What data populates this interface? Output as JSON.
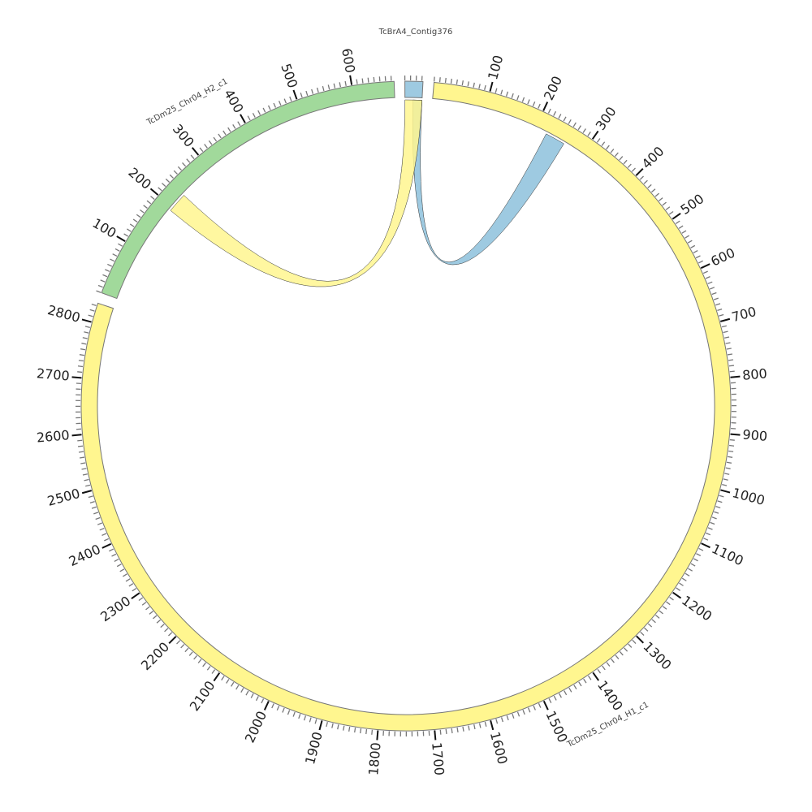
{
  "chart_data": {
    "type": "chord",
    "tick_major_interval": 100,
    "tick_minor_interval": 10,
    "segments": [
      {
        "id": "contig",
        "name": "TcBrA4_Contig376",
        "length": 32,
        "color": "#9ecae1"
      },
      {
        "id": "h1",
        "name": "TcDm25_Chr04_H1_c1",
        "length": 2835,
        "color": "#fff68f"
      },
      {
        "id": "h2",
        "name": "TcDm25_Chr04_H2_c1",
        "length": 675,
        "color": "#a1d99b"
      }
    ],
    "links": [
      {
        "source": "contig",
        "source_range": [
          15,
          32
        ],
        "target": "h1",
        "target_range": [
          223,
          261
        ],
        "color": "#9ecae1"
      },
      {
        "source": "contig",
        "source_range": [
          0,
          32
        ],
        "target": "h2",
        "target_range": [
          193,
          231
        ],
        "color": "#fff68f"
      }
    ]
  }
}
